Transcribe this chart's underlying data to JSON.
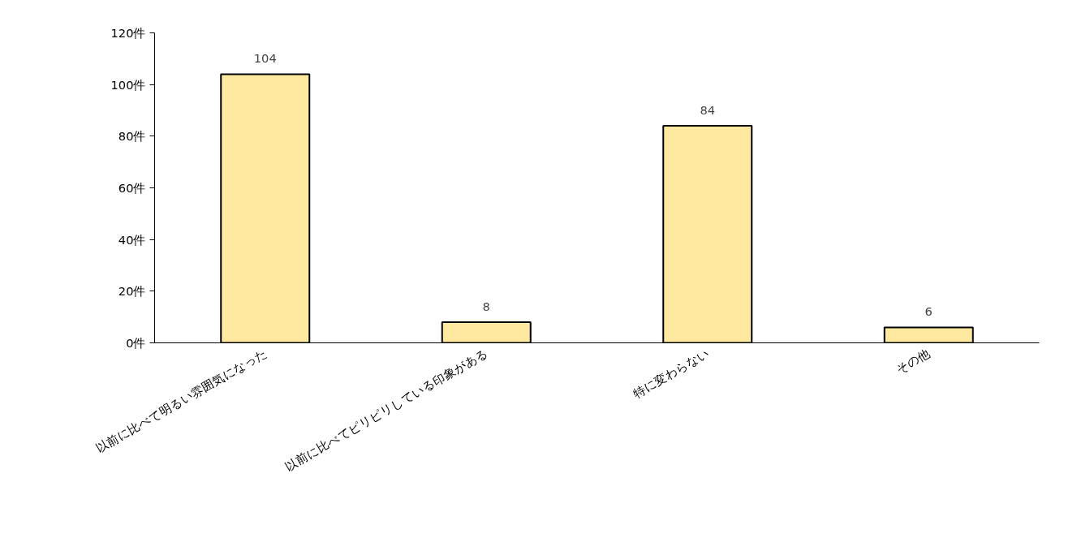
{
  "chart_data": {
    "type": "bar",
    "categories": [
      "以前に比べて明るい雰囲気になった",
      "以前に比べてピリピリしている印象がある",
      "特に変わらない",
      "その他"
    ],
    "values": [
      104,
      8,
      84,
      6
    ],
    "color": "#ffe8a0",
    "data_labels": true,
    "ylim": [
      0,
      120
    ],
    "yticks": [
      {
        "value": 0,
        "label": "0件"
      },
      {
        "value": 20,
        "label": "20件"
      },
      {
        "value": 40,
        "label": "40件"
      },
      {
        "value": 60,
        "label": "60件"
      },
      {
        "value": 80,
        "label": "80件"
      },
      {
        "value": 100,
        "label": "100件"
      },
      {
        "value": 120,
        "label": "120件"
      }
    ],
    "grid": false
  }
}
